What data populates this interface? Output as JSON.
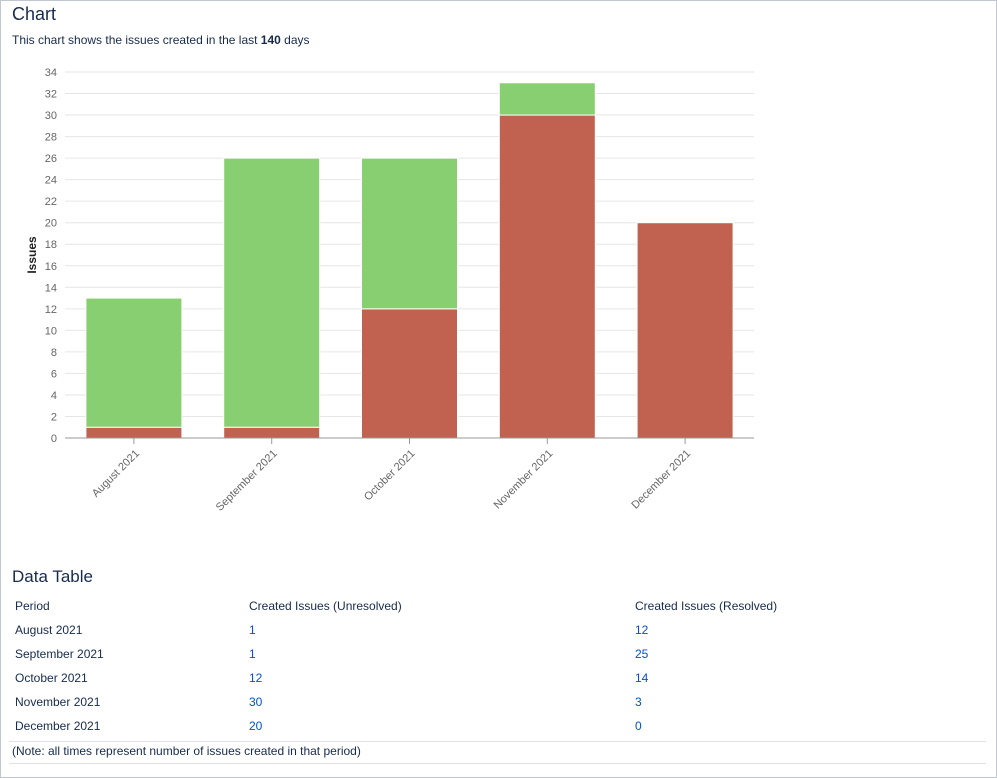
{
  "chart_section": {
    "title": "Chart",
    "description_prefix": "This chart shows the issues created in the last ",
    "description_days": "140",
    "description_suffix": " days"
  },
  "chart_data": {
    "type": "bar",
    "stacked": true,
    "categories": [
      "August 2021",
      "September 2021",
      "October 2021",
      "November 2021",
      "December 2021"
    ],
    "series": [
      {
        "name": "Created Issues (Unresolved)",
        "color": "#c1614f",
        "values": [
          1,
          1,
          12,
          30,
          20
        ]
      },
      {
        "name": "Created Issues (Resolved)",
        "color": "#88cf71",
        "values": [
          12,
          25,
          14,
          3,
          0
        ]
      }
    ],
    "ylabel": "Issues",
    "ylim": [
      0,
      34
    ],
    "yticks": [
      0,
      2,
      4,
      6,
      8,
      10,
      12,
      14,
      16,
      18,
      20,
      22,
      24,
      26,
      28,
      30,
      32,
      34
    ],
    "grid": true
  },
  "data_table": {
    "title": "Data Table",
    "headers": [
      "Period",
      "Created Issues (Unresolved)",
      "Created Issues (Resolved)"
    ],
    "rows": [
      {
        "period": "August 2021",
        "unresolved": "1",
        "resolved": "12"
      },
      {
        "period": "September 2021",
        "unresolved": "1",
        "resolved": "25"
      },
      {
        "period": "October 2021",
        "unresolved": "12",
        "resolved": "14"
      },
      {
        "period": "November 2021",
        "unresolved": "30",
        "resolved": "3"
      },
      {
        "period": "December 2021",
        "unresolved": "20",
        "resolved": "0"
      }
    ],
    "note": "(Note: all times represent number of issues created in that period)"
  }
}
